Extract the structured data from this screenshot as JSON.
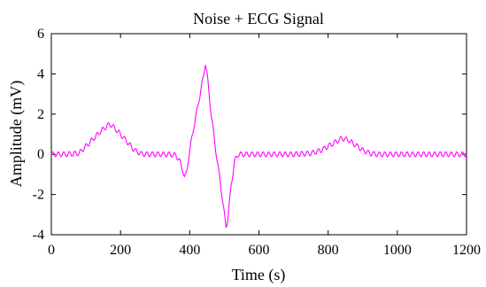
{
  "chart_data": {
    "type": "line",
    "title": "Noise + ECG Signal",
    "xlabel": "Time (s)",
    "ylabel": "Amplitude (mV)",
    "xlim": [
      0,
      1200
    ],
    "ylim": [
      -4,
      6
    ],
    "xticks": [
      0,
      200,
      400,
      600,
      800,
      1000,
      1200
    ],
    "yticks": [
      -4,
      -2,
      0,
      2,
      4,
      6
    ],
    "grid": false,
    "legend": "none",
    "series": [
      {
        "color": "#ff00ff",
        "x": [
          0,
          40,
          80,
          100,
          120,
          140,
          160,
          170,
          180,
          200,
          220,
          240,
          260,
          280,
          300,
          320,
          340,
          360,
          370,
          380,
          385,
          390,
          400,
          410,
          420,
          430,
          440,
          445,
          450,
          460,
          470,
          480,
          490,
          500,
          505,
          510,
          520,
          530,
          540,
          560,
          600,
          650,
          700,
          750,
          780,
          800,
          820,
          840,
          860,
          880,
          900,
          920,
          940,
          1000,
          1100,
          1200
        ],
        "y": [
          0,
          0,
          0.05,
          0.4,
          0.75,
          1.1,
          1.4,
          1.5,
          1.35,
          1.0,
          0.6,
          0.2,
          0.02,
          0,
          0,
          0,
          0,
          -0.05,
          -0.3,
          -0.8,
          -1.15,
          -1.0,
          0.2,
          1.2,
          2.1,
          3.0,
          3.9,
          4.55,
          4.0,
          2.3,
          0.9,
          -0.4,
          -1.6,
          -3.0,
          -3.6,
          -3.2,
          -1.5,
          -0.3,
          0,
          0,
          0,
          0,
          0,
          0.05,
          0.2,
          0.4,
          0.6,
          0.8,
          0.7,
          0.45,
          0.2,
          0.05,
          0,
          0,
          0,
          0
        ]
      }
    ]
  }
}
